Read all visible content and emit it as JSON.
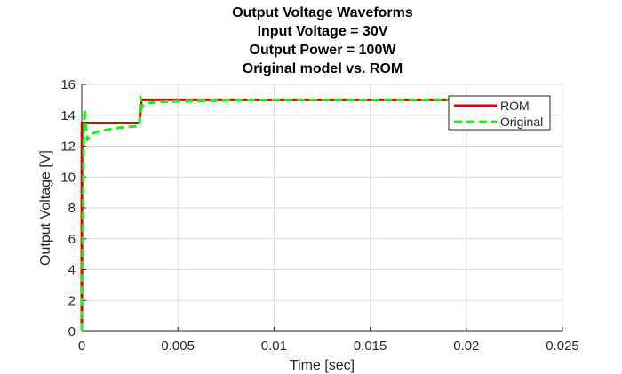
{
  "chart_data": {
    "type": "line",
    "title": [
      "Output Voltage Waveforms",
      "Input Voltage = 30V",
      "Output Power = 100W",
      "Original model vs. ROM"
    ],
    "xlabel": "Time [sec]",
    "ylabel": "Output Voltage [V]",
    "xlim": [
      0,
      0.025
    ],
    "ylim": [
      0,
      16
    ],
    "xticks": [
      0,
      0.005,
      0.01,
      0.015,
      0.02,
      0.025
    ],
    "xtick_labels": [
      "0",
      "0.005",
      "0.01",
      "0.015",
      "0.02",
      "0.025"
    ],
    "yticks": [
      0,
      2,
      4,
      6,
      8,
      10,
      12,
      14,
      16
    ],
    "ytick_labels": [
      "0",
      "2",
      "4",
      "6",
      "8",
      "10",
      "12",
      "14",
      "16"
    ],
    "grid": true,
    "legend_position": "top-right",
    "series": [
      {
        "name": "ROM",
        "color": "#e00000",
        "dash": "solid",
        "x": [
          0,
          1e-05,
          0.003,
          0.0031,
          0.02
        ],
        "y": [
          0,
          13.5,
          13.5,
          15.0,
          15.0
        ]
      },
      {
        "name": "Original",
        "color": "#22ee22",
        "dash": "dashed",
        "x": [
          0,
          5e-05,
          0.0001,
          0.00015,
          0.0002,
          0.0003,
          0.0005,
          0.001,
          0.002,
          0.003,
          0.00305,
          0.0031,
          0.0032,
          0.0035,
          0.004,
          0.005,
          0.007,
          0.01,
          0.015,
          0.02
        ],
        "y": [
          0,
          6,
          12,
          14.4,
          13.5,
          12.4,
          12.8,
          13.0,
          13.2,
          13.3,
          15.2,
          14.4,
          14.7,
          14.8,
          14.85,
          14.9,
          14.95,
          15.0,
          15.0,
          15.0
        ]
      }
    ]
  }
}
